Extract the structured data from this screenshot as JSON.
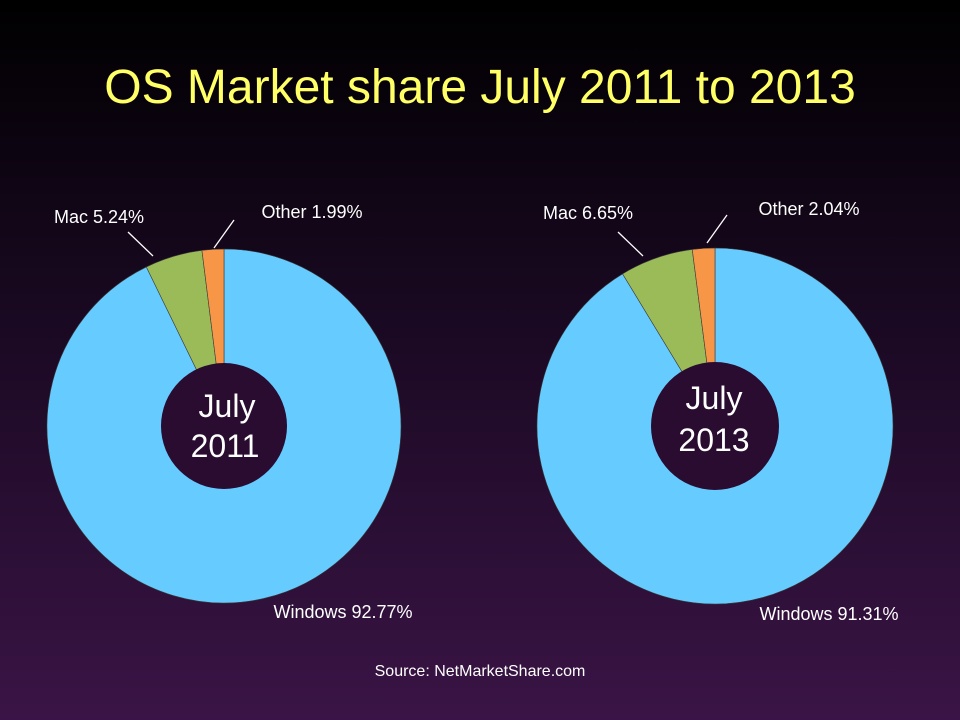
{
  "title": "OS Market share July 2011 to 2013",
  "source": "Source: NetMarketShare.com",
  "colors": {
    "windows": "#66ccff",
    "mac": "#9bbb59",
    "other": "#f79646",
    "hole": "#2a0c30",
    "title": "#ffff66",
    "text": "#ffffff"
  },
  "chart_data": [
    {
      "type": "pie",
      "center_label": [
        "July",
        "2011"
      ],
      "slices": [
        {
          "name": "Windows",
          "value": 92.77,
          "label": "Windows 92.77%"
        },
        {
          "name": "Mac",
          "value": 5.24,
          "label": "Mac 5.24%"
        },
        {
          "name": "Other",
          "value": 1.99,
          "label": "Other 1.99%"
        }
      ]
    },
    {
      "type": "pie",
      "center_label": [
        "July",
        "2013"
      ],
      "slices": [
        {
          "name": "Windows",
          "value": 91.31,
          "label": "Windows 91.31%"
        },
        {
          "name": "Mac",
          "value": 6.65,
          "label": "Mac 6.65%"
        },
        {
          "name": "Other",
          "value": 2.04,
          "label": "Other 2.04%"
        }
      ]
    }
  ]
}
